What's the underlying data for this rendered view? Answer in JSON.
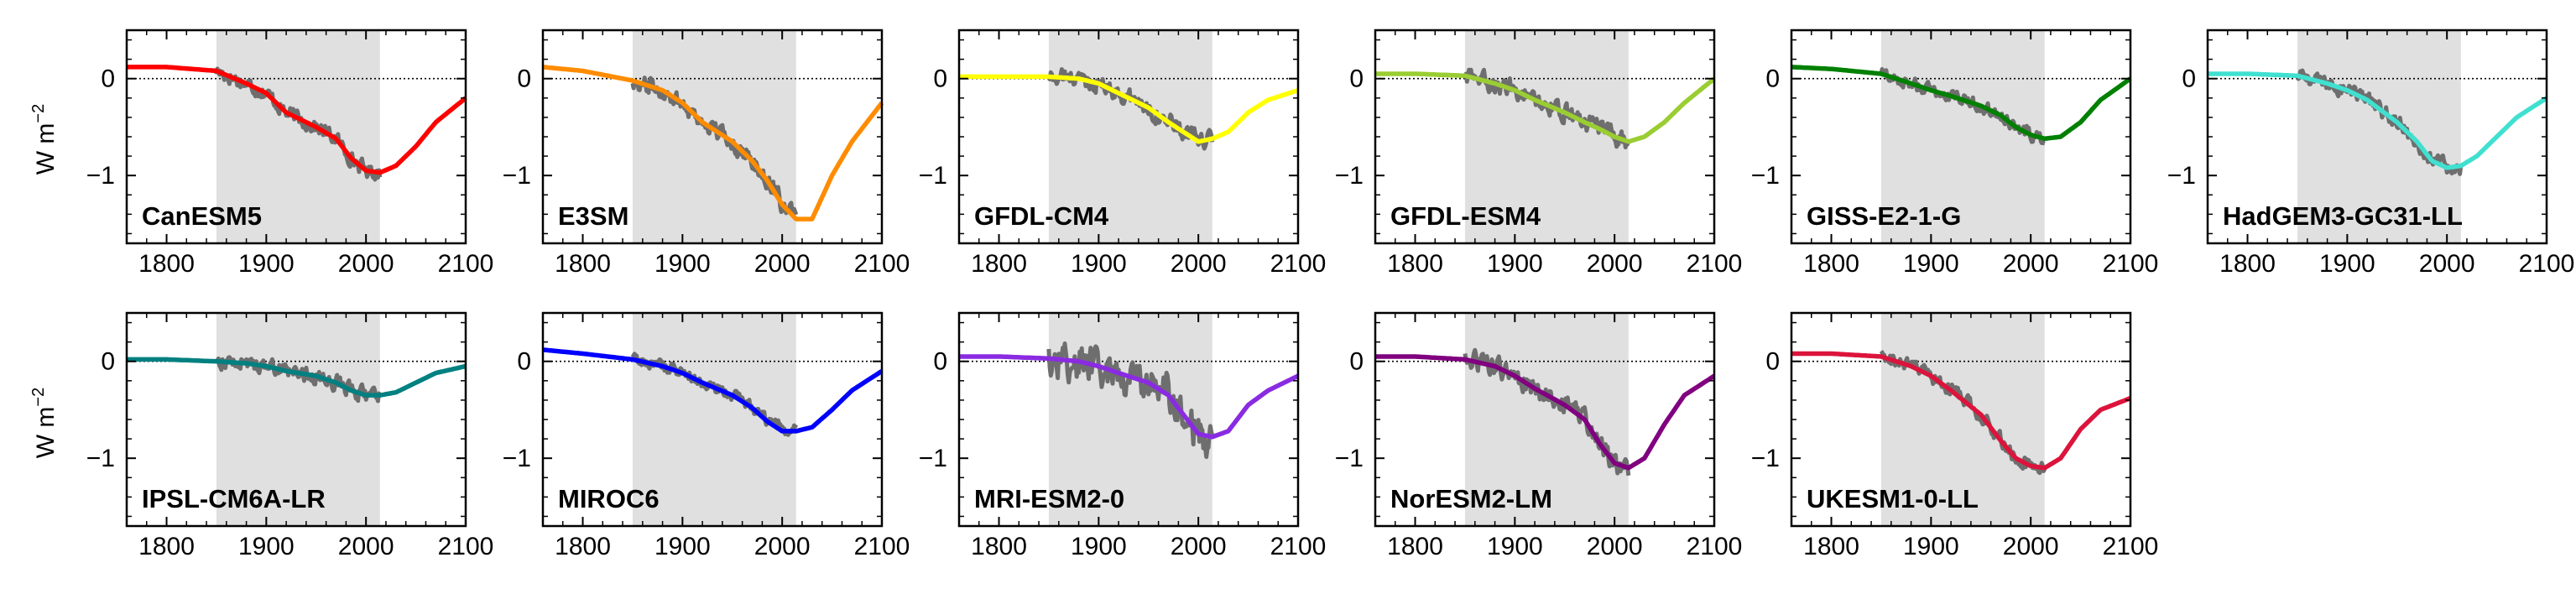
{
  "figure": {
    "ylabel": "W m",
    "ylabel_exp": "−2"
  },
  "chart_data": {
    "type": "line",
    "xlim": [
      1760,
      2100
    ],
    "ylim": [
      -1.7,
      0.5
    ],
    "xticks": [
      1800,
      1900,
      2000,
      2100
    ],
    "xtick_labels": [
      "1800",
      "1900",
      "2000",
      "2100"
    ],
    "yticks": [
      0,
      -1
    ],
    "ytick_labels": [
      "0",
      "−1"
    ],
    "shaded_period": [
      1850,
      2014
    ],
    "zero_line": true,
    "panels": [
      {
        "model": "CanESM5",
        "color": "#ff0000",
        "x": [
          1760,
          1800,
          1850,
          1880,
          1900,
          1920,
          1950,
          1970,
          1985,
          2000,
          2014,
          2030,
          2050,
          2070,
          2100
        ],
        "y": [
          0.12,
          0.12,
          0.08,
          -0.05,
          -0.15,
          -0.35,
          -0.5,
          -0.62,
          -0.82,
          -0.95,
          -0.97,
          -0.9,
          -0.7,
          -0.45,
          -0.2
        ],
        "obs_noise": 0.12
      },
      {
        "model": "E3SM",
        "color": "#ff8c00",
        "x": [
          1760,
          1800,
          1850,
          1880,
          1900,
          1920,
          1950,
          1970,
          1985,
          2000,
          2014,
          2030,
          2050,
          2070,
          2100
        ],
        "y": [
          0.12,
          0.08,
          -0.02,
          -0.12,
          -0.25,
          -0.45,
          -0.65,
          -0.85,
          -1.05,
          -1.3,
          -1.45,
          -1.45,
          -1.0,
          -0.65,
          -0.25
        ],
        "obs_noise": 0.14
      },
      {
        "model": "GFDL-CM4",
        "color": "#ffff00",
        "x": [
          1760,
          1800,
          1850,
          1880,
          1900,
          1920,
          1950,
          1970,
          1985,
          2000,
          2014,
          2030,
          2050,
          2070,
          2100
        ],
        "y": [
          0.02,
          0.02,
          0.02,
          0.0,
          -0.05,
          -0.15,
          -0.3,
          -0.45,
          -0.55,
          -0.65,
          -0.62,
          -0.55,
          -0.35,
          -0.22,
          -0.12
        ],
        "obs_noise": 0.14
      },
      {
        "model": "GFDL-ESM4",
        "color": "#9acd32",
        "x": [
          1760,
          1800,
          1850,
          1880,
          1900,
          1920,
          1950,
          1970,
          1985,
          2000,
          2014,
          2030,
          2050,
          2070,
          2100
        ],
        "y": [
          0.05,
          0.05,
          0.03,
          -0.05,
          -0.12,
          -0.22,
          -0.35,
          -0.45,
          -0.52,
          -0.6,
          -0.65,
          -0.6,
          -0.45,
          -0.25,
          0.0
        ],
        "obs_noise": 0.14
      },
      {
        "model": "GISS-E2-1-G",
        "color": "#008000",
        "x": [
          1760,
          1800,
          1850,
          1880,
          1900,
          1920,
          1950,
          1970,
          1985,
          2000,
          2014,
          2030,
          2050,
          2070,
          2100
        ],
        "y": [
          0.12,
          0.1,
          0.05,
          -0.05,
          -0.12,
          -0.18,
          -0.28,
          -0.38,
          -0.5,
          -0.58,
          -0.62,
          -0.6,
          -0.45,
          -0.22,
          0.0
        ],
        "obs_noise": 0.1
      },
      {
        "model": "HadGEM3-GC31-LL",
        "color": "#40e0d0",
        "x": [
          1760,
          1800,
          1850,
          1880,
          1900,
          1920,
          1950,
          1970,
          1985,
          2000,
          2014,
          2030,
          2050,
          2070,
          2100
        ],
        "y": [
          0.05,
          0.05,
          0.03,
          -0.05,
          -0.12,
          -0.22,
          -0.45,
          -0.65,
          -0.85,
          -0.92,
          -0.9,
          -0.8,
          -0.6,
          -0.4,
          -0.2
        ],
        "obs_noise": 0.12
      },
      {
        "model": "IPSL-CM6A-LR",
        "color": "#008080",
        "x": [
          1760,
          1800,
          1850,
          1880,
          1900,
          1920,
          1950,
          1970,
          1985,
          2000,
          2014,
          2030,
          2050,
          2070,
          2100
        ],
        "y": [
          0.02,
          0.02,
          0.0,
          -0.02,
          -0.05,
          -0.1,
          -0.15,
          -0.22,
          -0.3,
          -0.35,
          -0.35,
          -0.32,
          -0.22,
          -0.12,
          -0.05
        ],
        "obs_noise": 0.12
      },
      {
        "model": "MIROC6",
        "color": "#0000ff",
        "x": [
          1760,
          1800,
          1850,
          1880,
          1900,
          1920,
          1950,
          1970,
          1985,
          2000,
          2014,
          2030,
          2050,
          2070,
          2100
        ],
        "y": [
          0.12,
          0.08,
          0.02,
          -0.05,
          -0.12,
          -0.22,
          -0.35,
          -0.48,
          -0.62,
          -0.72,
          -0.72,
          -0.68,
          -0.5,
          -0.3,
          -0.1
        ],
        "obs_noise": 0.1
      },
      {
        "model": "MRI-ESM2-0",
        "color": "#8a2be2",
        "x": [
          1760,
          1800,
          1850,
          1880,
          1900,
          1920,
          1950,
          1970,
          1985,
          2000,
          2014,
          2030,
          2050,
          2070,
          2100
        ],
        "y": [
          0.05,
          0.05,
          0.03,
          0.0,
          -0.05,
          -0.12,
          -0.22,
          -0.35,
          -0.55,
          -0.75,
          -0.78,
          -0.72,
          -0.45,
          -0.3,
          -0.15
        ],
        "obs_noise": 0.3
      },
      {
        "model": "NorESM2-LM",
        "color": "#800080",
        "x": [
          1760,
          1800,
          1850,
          1880,
          1900,
          1920,
          1950,
          1970,
          1985,
          2000,
          2014,
          2030,
          2050,
          2070,
          2100
        ],
        "y": [
          0.05,
          0.05,
          0.02,
          -0.05,
          -0.15,
          -0.28,
          -0.45,
          -0.6,
          -0.85,
          -1.05,
          -1.1,
          -1.0,
          -0.65,
          -0.35,
          -0.15
        ],
        "obs_noise": 0.15
      },
      {
        "model": "UKESM1-0-LL",
        "color": "#dc143c",
        "x": [
          1760,
          1800,
          1850,
          1880,
          1900,
          1920,
          1950,
          1970,
          1985,
          2000,
          2014,
          2030,
          2050,
          2070,
          2100
        ],
        "y": [
          0.08,
          0.08,
          0.05,
          -0.05,
          -0.15,
          -0.3,
          -0.55,
          -0.82,
          -1.0,
          -1.08,
          -1.1,
          -1.0,
          -0.7,
          -0.5,
          -0.38
        ],
        "obs_noise": 0.12
      }
    ]
  }
}
